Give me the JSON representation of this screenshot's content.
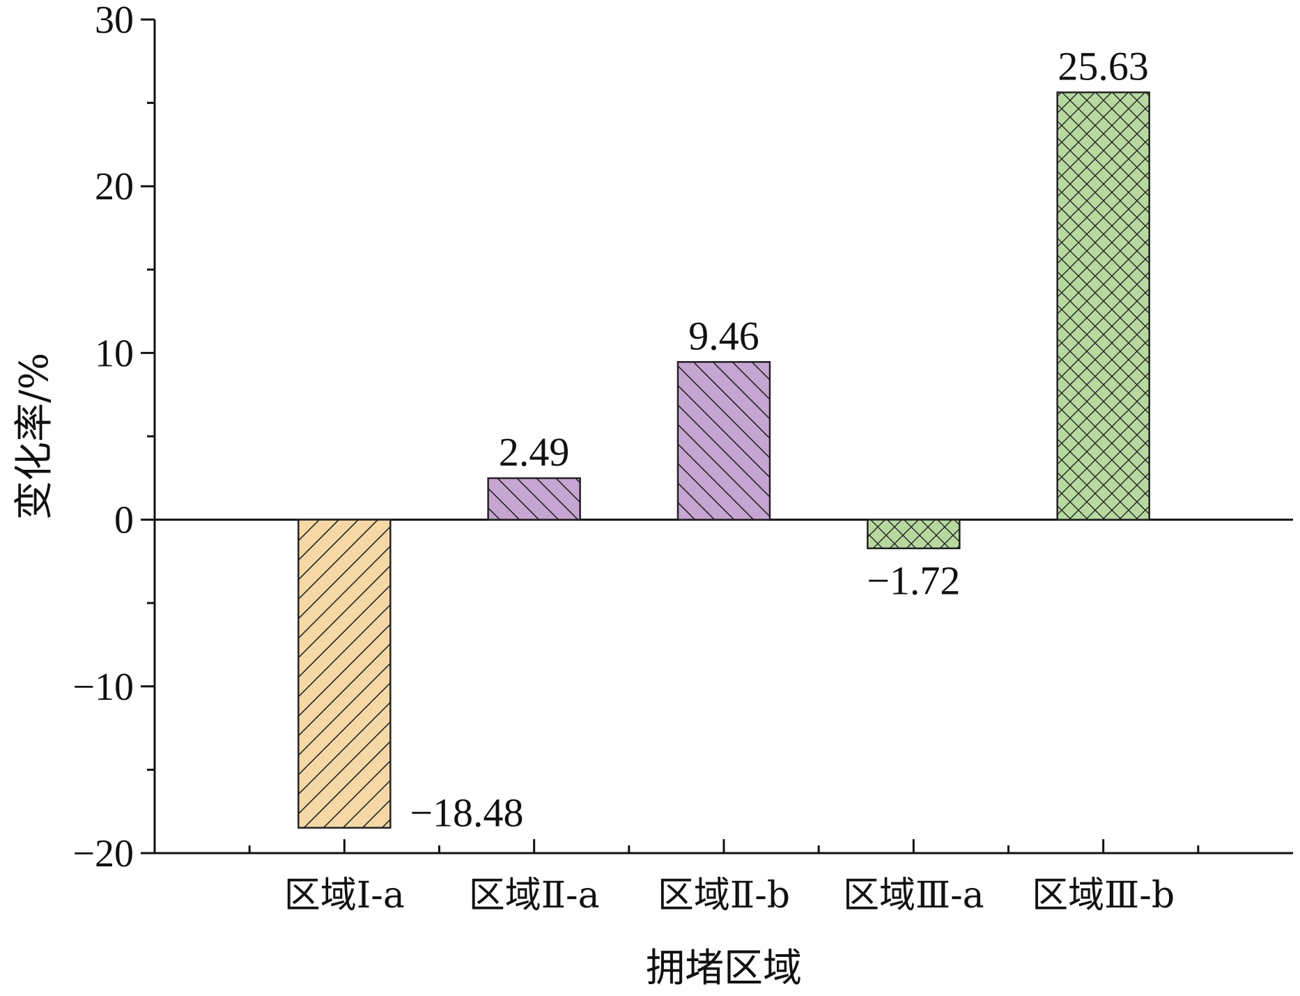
{
  "chart_data": {
    "type": "bar",
    "title": "",
    "xlabel": "拥堵区域",
    "ylabel": "变化率/%",
    "ylim": [
      -20,
      30
    ],
    "yticks": [
      -20,
      -10,
      0,
      10,
      20,
      30
    ],
    "ytick_labels": [
      "−20",
      "−10",
      "0",
      "10",
      "20",
      "30"
    ],
    "categories": [
      "区域Ⅰ-a",
      "区域Ⅱ-a",
      "区域Ⅱ-b",
      "区域Ⅲ-a",
      "区域Ⅲ-b"
    ],
    "values": [
      -18.48,
      2.49,
      9.46,
      -1.72,
      25.63
    ],
    "value_labels": [
      "−18.48",
      "2.49",
      "9.46",
      "−1.72",
      "25.63"
    ],
    "bar_colors": [
      "#f5d8a6",
      "#c7a5d2",
      "#c7a5d2",
      "#b7d9a0",
      "#b7d9a0"
    ],
    "bar_patterns": [
      "diag-forward",
      "diag-back",
      "diag-back",
      "crosshatch",
      "crosshatch"
    ],
    "grid": false,
    "legend": "none"
  }
}
